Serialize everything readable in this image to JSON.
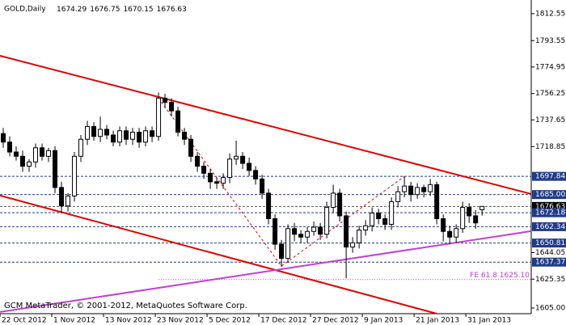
{
  "chart_data": {
    "type": "candlestick",
    "title": "GOLD,Daily",
    "footer": "GCM MetaTrader, © 2001-2012, MetaQuotes Software Corp.",
    "categories": [
      "22 Oct 2012",
      null,
      null,
      null,
      null,
      null,
      null,
      null,
      "1 Nov 2012",
      null,
      null,
      null,
      null,
      null,
      null,
      null,
      "13 Nov 2012",
      null,
      null,
      null,
      null,
      null,
      null,
      null,
      "23 Nov 2012",
      null,
      null,
      null,
      null,
      null,
      null,
      null,
      "5 Dec 2012",
      null,
      null,
      null,
      null,
      null,
      null,
      null,
      "17 Dec 2012",
      null,
      null,
      null,
      null,
      null,
      null,
      null,
      "27 Dec 2012",
      null,
      null,
      null,
      null,
      null,
      null,
      null,
      "9 Jan 2013",
      null,
      null,
      null,
      null,
      null,
      null,
      null,
      "21 Jan 2013",
      null,
      null,
      null,
      null,
      null,
      null,
      null,
      "31 Jan 2013",
      null,
      null
    ],
    "open": [
      1728,
      1722,
      1715,
      1712,
      1705,
      1708,
      1718,
      1712,
      1716,
      1690,
      1677,
      1684,
      1712,
      1724,
      1733,
      1726,
      1731,
      1727,
      1722,
      1730,
      1724,
      1729,
      1722,
      1730,
      1726,
      1753,
      1750,
      1744,
      1729,
      1724,
      1712,
      1705,
      1700,
      1694,
      1693,
      1697,
      1710,
      1712,
      1707,
      1702,
      1696,
      1686,
      1668,
      1650,
      1640,
      1661,
      1657,
      1655,
      1659,
      1662,
      1657,
      1676,
      1686,
      1670,
      1648,
      1651,
      1660,
      1663,
      1672,
      1668,
      1664,
      1680,
      1687,
      1691,
      1685,
      1690,
      1687,
      1692,
      1668,
      1659,
      1655,
      1661,
      1676,
      1670,
      1674.29
    ],
    "high": [
      1732,
      1726,
      1719,
      1716,
      1710,
      1721,
      1721,
      1718,
      1719,
      1694,
      1686,
      1715,
      1727,
      1737,
      1736,
      1740,
      1734,
      1730,
      1733,
      1733,
      1732,
      1732,
      1733,
      1733,
      1757,
      1756,
      1753,
      1747,
      1732,
      1727,
      1715,
      1708,
      1703,
      1697,
      1700,
      1714,
      1723,
      1715,
      1711,
      1705,
      1699,
      1689,
      1671,
      1653,
      1664,
      1665,
      1660,
      1662,
      1666,
      1665,
      1680,
      1692,
      1689,
      1673,
      1655,
      1663,
      1667,
      1676,
      1675,
      1671,
      1683,
      1691,
      1697.84,
      1694,
      1693,
      1692,
      1696,
      1694,
      1671,
      1663,
      1664,
      1680,
      1679,
      1674,
      1676.75
    ],
    "low": [
      1718,
      1712,
      1709,
      1701,
      1701,
      1704,
      1709,
      1708,
      1686,
      1672,
      1673,
      1680,
      1708,
      1720,
      1723,
      1722,
      1724,
      1719,
      1719,
      1720,
      1720,
      1718,
      1719,
      1722,
      1723,
      1746,
      1740,
      1726,
      1720,
      1708,
      1701,
      1696,
      1689,
      1689,
      1689,
      1693,
      1706,
      1703,
      1698,
      1692,
      1682,
      1664,
      1646,
      1634,
      1637,
      1652,
      1651,
      1651,
      1656,
      1653,
      1654,
      1672,
      1666,
      1626,
      1644,
      1647,
      1656,
      1659,
      1664,
      1660,
      1660,
      1676,
      1683,
      1680,
      1682,
      1683,
      1684,
      1664,
      1652,
      1650,
      1651,
      1658,
      1665,
      1661,
      1670.15
    ],
    "close": [
      1722,
      1715,
      1712,
      1705,
      1708,
      1718,
      1712,
      1716,
      1690,
      1677,
      1684,
      1712,
      1724,
      1733,
      1726,
      1731,
      1727,
      1722,
      1730,
      1724,
      1729,
      1722,
      1730,
      1726,
      1753,
      1750,
      1744,
      1729,
      1724,
      1712,
      1705,
      1700,
      1694,
      1693,
      1697,
      1710,
      1712,
      1707,
      1702,
      1696,
      1686,
      1668,
      1650,
      1640,
      1661,
      1657,
      1655,
      1659,
      1662,
      1657,
      1676,
      1686,
      1670,
      1648,
      1651,
      1660,
      1663,
      1672,
      1668,
      1664,
      1680,
      1687,
      1691,
      1685,
      1690,
      1687,
      1692,
      1668,
      1659,
      1655,
      1661,
      1676,
      1670,
      1665,
      1676.63
    ],
    "xlim": [
      -0.5,
      81.6
    ],
    "ylim": [
      1601,
      1822.2
    ],
    "yticks": [
      1812.55,
      1793.55,
      1774.95,
      1756.25,
      1737.65,
      1718.85,
      1644.05,
      1625.35,
      {
        "value": 1605,
        "label": "1605.00"
      }
    ],
    "levels": [
      1697.84,
      {
        "value": 1685,
        "label": "1685.00"
      },
      1676.63,
      1672.18,
      1662.34,
      1650.81,
      1637.37
    ],
    "lines": [
      {
        "color": "#e00000",
        "style": "solid",
        "x": [
          -0.5,
          81.6
        ],
        "y": [
          1782.9,
          1685.4
        ]
      },
      {
        "color": "#e00000",
        "style": "solid",
        "x": [
          -0.5,
          67
        ],
        "y": [
          1684.3,
          1601.0
        ]
      },
      {
        "color": "#c040d0",
        "style": "solid",
        "x": [
          -0.5,
          81.6
        ],
        "y": [
          1602.2,
          1659.2
        ]
      },
      {
        "color": "#e00000",
        "style": "dashed",
        "x": [
          24,
          43,
          62
        ],
        "y": [
          1753,
          1634.5,
          1697.84
        ]
      }
    ],
    "fe": {
      "value": 1625.1,
      "label": "FE 61.8 1625.10",
      "x": 24,
      "color": "#c040d0"
    }
  }
}
